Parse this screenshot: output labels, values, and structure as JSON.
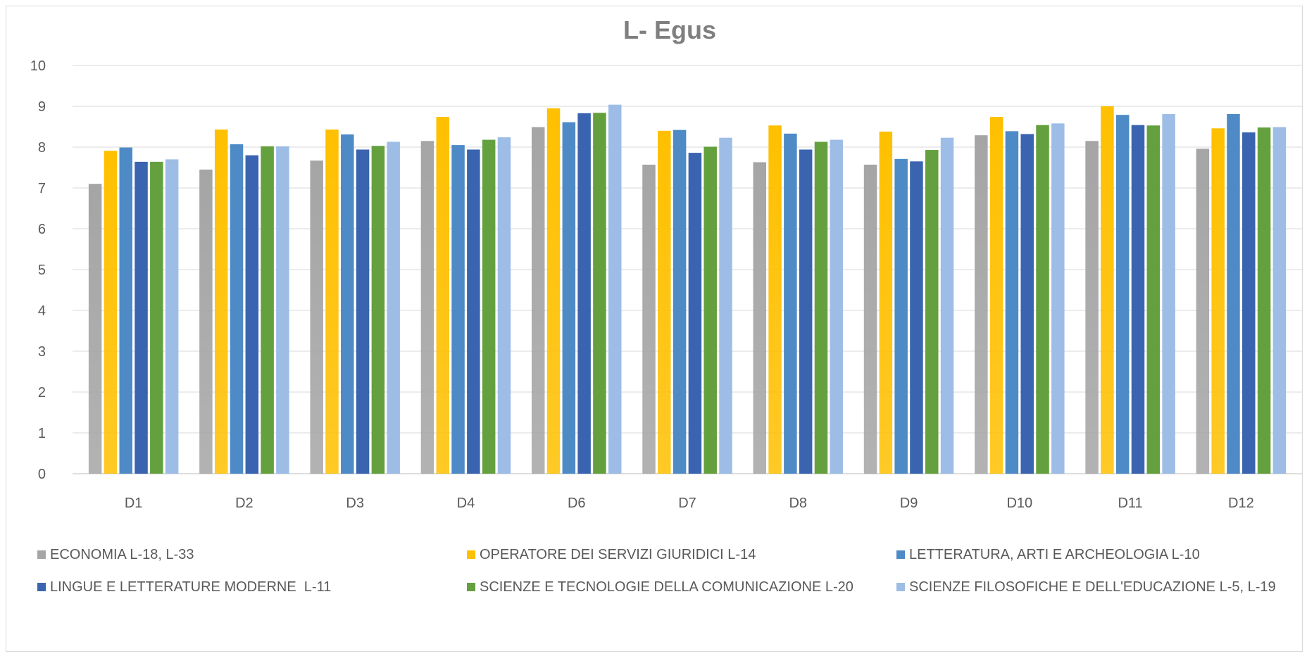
{
  "chart_data": {
    "type": "bar",
    "title": "L- Egus",
    "xlabel": "",
    "ylabel": "",
    "ylim": [
      0,
      10
    ],
    "yticks": [
      0,
      1,
      2,
      3,
      4,
      5,
      6,
      7,
      8,
      9,
      10
    ],
    "grid": true,
    "legend_position": "bottom",
    "categories": [
      "D1",
      "D2",
      "D3",
      "D4",
      "D6",
      "D7",
      "D8",
      "D9",
      "D10",
      "D11",
      "D12"
    ],
    "series": [
      {
        "name": "ECONOMIA L-18, L-33",
        "color": "#a5a5a5",
        "values": [
          7.1,
          7.45,
          7.67,
          8.15,
          8.49,
          7.57,
          7.63,
          7.57,
          8.29,
          8.15,
          7.96
        ]
      },
      {
        "name": "OPERATORE DEI SERVIZI GIURIDICI L-14",
        "color": "#ffc000",
        "values": [
          7.91,
          8.43,
          8.43,
          8.74,
          8.95,
          8.4,
          8.53,
          8.38,
          8.74,
          9.0,
          8.46
        ]
      },
      {
        "name": "LETTERATURA, ARTI E ARCHEOLOGIA L-10",
        "color": "#4e8ac6",
        "values": [
          7.99,
          8.07,
          8.31,
          8.05,
          8.61,
          8.42,
          8.33,
          7.71,
          8.39,
          8.79,
          8.81
        ]
      },
      {
        "name": "LINGUE E LETTERATURE MODERNE  L-11",
        "color": "#3a64af",
        "values": [
          7.64,
          7.8,
          7.94,
          7.94,
          8.83,
          7.86,
          7.94,
          7.65,
          8.32,
          8.54,
          8.36
        ]
      },
      {
        "name": "SCIENZE E TECNOLOGIE DELLA COMUNICAZIONE L-20",
        "color": "#64a03e",
        "values": [
          7.64,
          8.02,
          8.03,
          8.18,
          8.84,
          8.01,
          8.13,
          7.93,
          8.54,
          8.53,
          8.48
        ]
      },
      {
        "name": "SCIENZE FILOSOFICHE E DELL'EDUCAZIONE L-5, L-19",
        "color": "#9dbde6",
        "values": [
          7.7,
          8.02,
          8.13,
          8.24,
          9.04,
          8.23,
          8.18,
          8.23,
          8.58,
          8.81,
          8.49
        ]
      }
    ]
  }
}
